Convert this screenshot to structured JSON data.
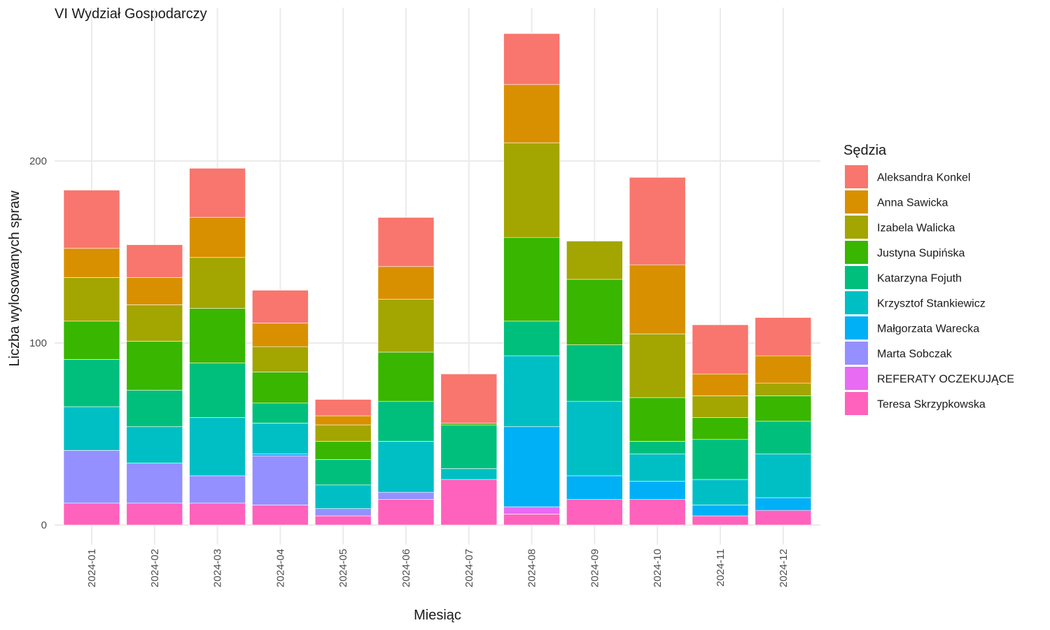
{
  "chart_data": {
    "type": "bar",
    "stacked": true,
    "title": "VI Wydział Gospodarczy",
    "xlabel": "Miesiąc",
    "ylabel": "Liczba wylosowanych spraw",
    "ylim": [
      -10,
      280
    ],
    "yticks": [
      0,
      100,
      200
    ],
    "grid": true,
    "legend_position": "right",
    "legend_title": "Sędzia",
    "categories": [
      "2024-01",
      "2024-02",
      "2024-03",
      "2024-04",
      "2024-05",
      "2024-06",
      "2024-07",
      "2024-08",
      "2024-09",
      "2024-10",
      "2024-11",
      "2024-12"
    ],
    "series": [
      {
        "name": "Aleksandra Konkel",
        "color": "#F8766D",
        "values": [
          32,
          18,
          27,
          18,
          9,
          27,
          27,
          28,
          0,
          48,
          27,
          21
        ]
      },
      {
        "name": "Anna Sawicka",
        "color": "#D89000",
        "values": [
          16,
          15,
          22,
          13,
          5,
          18,
          0,
          32,
          0,
          38,
          12,
          15
        ]
      },
      {
        "name": "Izabela Walicka",
        "color": "#A3A500",
        "values": [
          24,
          20,
          28,
          14,
          9,
          29,
          0,
          52,
          21,
          35,
          12,
          7
        ]
      },
      {
        "name": "Justyna Supińska",
        "color": "#39B600",
        "values": [
          21,
          27,
          30,
          17,
          10,
          27,
          1,
          46,
          36,
          24,
          12,
          14
        ]
      },
      {
        "name": "Katarzyna Fojuth",
        "color": "#00BF7D",
        "values": [
          26,
          20,
          30,
          11,
          14,
          22,
          24,
          19,
          31,
          7,
          22,
          18
        ]
      },
      {
        "name": "Krzysztof Stankiewicz",
        "color": "#00BFC4",
        "values": [
          24,
          20,
          32,
          17,
          13,
          28,
          6,
          39,
          41,
          15,
          14,
          24
        ]
      },
      {
        "name": "Małgorzata Warecka",
        "color": "#00B0F6",
        "values": [
          0,
          0,
          0,
          1,
          0,
          0,
          0,
          44,
          13,
          10,
          6,
          7
        ]
      },
      {
        "name": "Marta Sobczak",
        "color": "#9590FF",
        "values": [
          29,
          22,
          15,
          27,
          4,
          4,
          0,
          0,
          0,
          0,
          0,
          0
        ]
      },
      {
        "name": "REFERATY OCZEKUJĄCE",
        "color": "#E76BF3",
        "values": [
          0,
          0,
          0,
          0,
          0,
          0,
          0,
          4,
          0,
          0,
          0,
          0
        ]
      },
      {
        "name": "Teresa Skrzypkowska",
        "color": "#FF62BC",
        "values": [
          12,
          12,
          12,
          11,
          5,
          14,
          25,
          6,
          14,
          14,
          5,
          8
        ]
      }
    ]
  }
}
